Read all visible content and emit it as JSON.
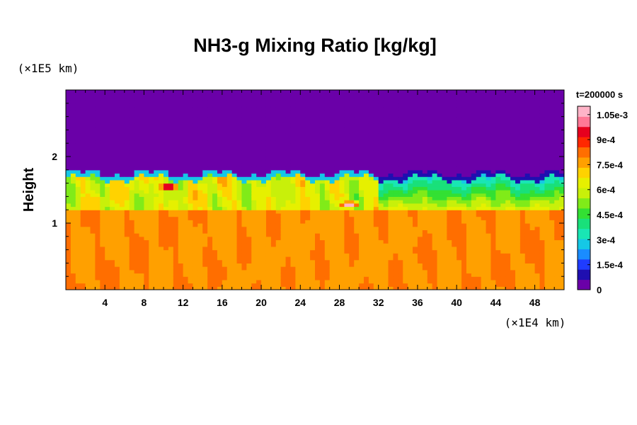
{
  "chart_data": {
    "type": "heatmap",
    "title": "NH3-g Mixing Ratio [kg/kg]",
    "time_label": "t=200000 s",
    "ylabel": "Height",
    "xunit": "(×1E4 km)",
    "yunit": "(×1E5 km)",
    "xlim": [
      0,
      51
    ],
    "ylim": [
      0,
      3
    ],
    "xticks": [
      "4",
      "8",
      "12",
      "16",
      "20",
      "24",
      "28",
      "32",
      "36",
      "40",
      "44",
      "48"
    ],
    "yticks": [
      "1",
      "2"
    ],
    "x_tick_values": [
      4,
      8,
      12,
      16,
      20,
      24,
      28,
      32,
      36,
      40,
      44,
      48
    ],
    "y_tick_values": [
      1,
      2
    ],
    "colorbar": {
      "min": 0,
      "max": 0.0011,
      "tick_labels": [
        "0",
        "1.5e-4",
        "3e-4",
        "4.5e-4",
        "6e-4",
        "7.5e-4",
        "9e-4",
        "1.05e-3"
      ],
      "tick_values": [
        0,
        0.00015,
        0.0003,
        0.00045,
        0.0006,
        0.00075,
        0.0009,
        0.00105
      ]
    },
    "field_description": {
      "lower_layer_value": 0.00079,
      "lower_layer_top_height": 1.2,
      "mixed_layer_top_height": 1.75,
      "upper_layer_value": 0.0,
      "hotspots": [
        {
          "x": 10.5,
          "y": 1.55,
          "value": 0.0011
        },
        {
          "x": 29.0,
          "y": 1.28,
          "value": 0.0011
        }
      ],
      "depleted_region_x": [
        32,
        51
      ]
    }
  }
}
